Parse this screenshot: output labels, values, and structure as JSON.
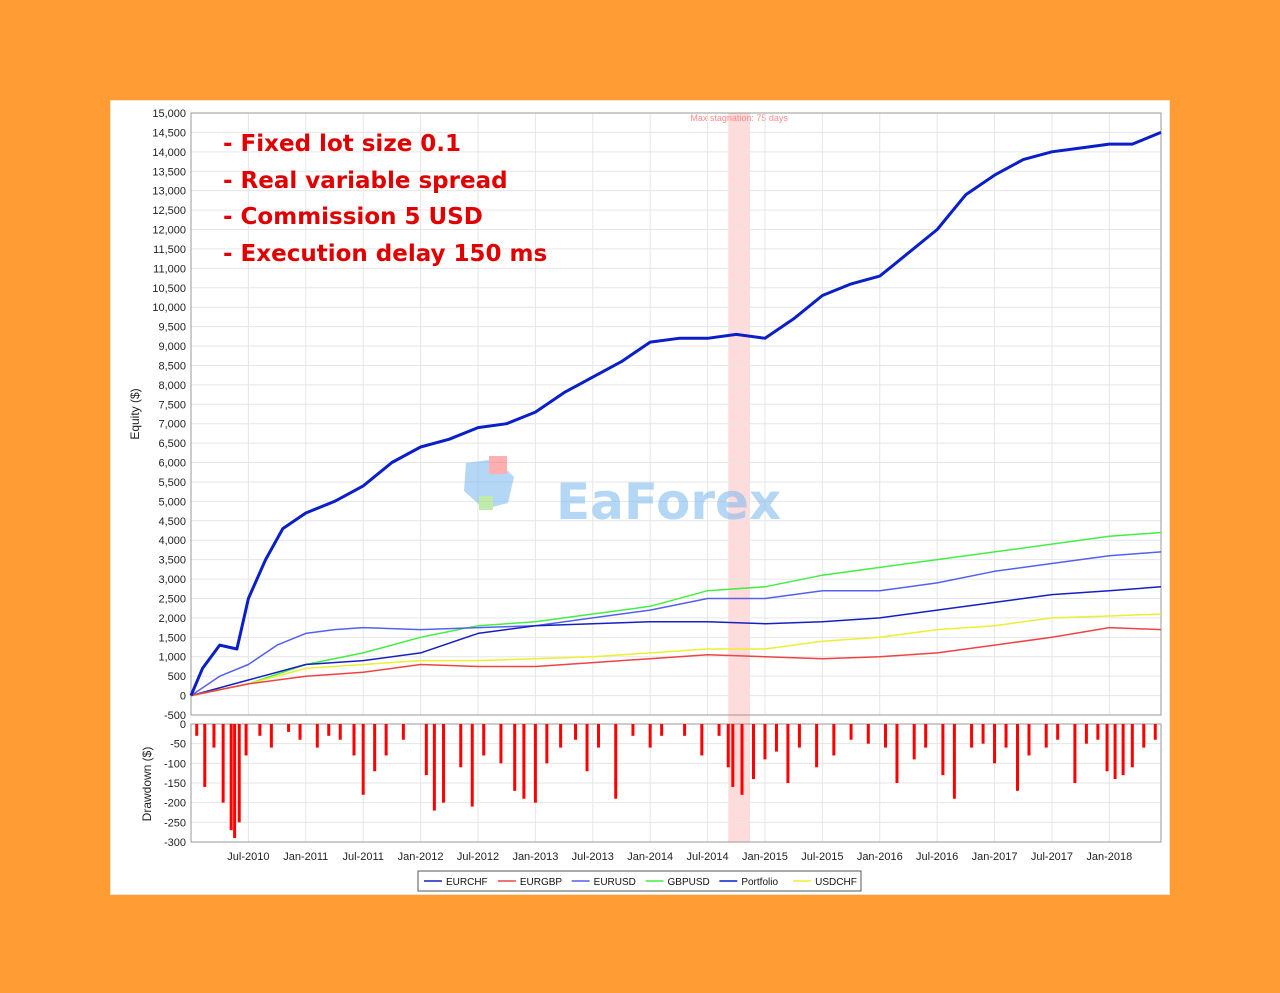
{
  "annotations": [
    "- Fixed lot size 0.1",
    "- Real variable spread",
    "- Commission 5 USD",
    "- Execution delay 150 ms"
  ],
  "watermark": "EaForex",
  "stagnation_label": "Max stagnation: 75 days",
  "chart_data": [
    {
      "type": "line",
      "ylabel": "Equity ($)",
      "ylim": [
        -500,
        15000
      ],
      "yticks": [
        15000,
        14500,
        14000,
        13500,
        13000,
        12500,
        12000,
        11500,
        11000,
        10500,
        10000,
        9500,
        9000,
        8500,
        8000,
        7500,
        7000,
        6500,
        6000,
        5500,
        5000,
        4500,
        4000,
        3500,
        3000,
        2500,
        2000,
        1500,
        1000,
        500,
        0,
        -500
      ],
      "ytick_labels": [
        "15,000",
        "14,500",
        "14,000",
        "13,500",
        "13,000",
        "12,500",
        "12,000",
        "11,500",
        "11,000",
        "10,500",
        "10,000",
        "9,500",
        "9,000",
        "8,500",
        "8,000",
        "7,500",
        "7,000",
        "6,500",
        "6,000",
        "5,500",
        "5,000",
        "4,500",
        "4,000",
        "3,500",
        "3,000",
        "2,500",
        "2,000",
        "1,500",
        "1,000",
        "500",
        "0",
        "-500"
      ],
      "xlim": [
        2010.0,
        2018.45
      ],
      "grid": true,
      "legend_position": "bottom",
      "highlight_x": [
        2014.68,
        2014.87
      ],
      "series": [
        {
          "name": "Portfolio",
          "color": "#0a1fc8",
          "width": 3,
          "x": [
            2010.0,
            2010.1,
            2010.25,
            2010.4,
            2010.5,
            2010.65,
            2010.8,
            2011.0,
            2011.25,
            2011.5,
            2011.75,
            2012.0,
            2012.25,
            2012.5,
            2012.75,
            2013.0,
            2013.25,
            2013.5,
            2013.75,
            2014.0,
            2014.25,
            2014.5,
            2014.75,
            2015.0,
            2015.25,
            2015.5,
            2015.75,
            2016.0,
            2016.25,
            2016.5,
            2016.75,
            2017.0,
            2017.25,
            2017.5,
            2017.75,
            2018.0,
            2018.2,
            2018.45
          ],
          "values": [
            0,
            700,
            1300,
            1200,
            2500,
            3500,
            4300,
            4700,
            5000,
            5400,
            6000,
            6400,
            6600,
            6900,
            7000,
            7300,
            7800,
            8200,
            8600,
            9100,
            9200,
            9200,
            9300,
            9200,
            9700,
            10300,
            10600,
            10800,
            11400,
            12000,
            12900,
            13400,
            13800,
            14000,
            14100,
            14200,
            14200,
            14500
          ]
        },
        {
          "name": "GBPUSD",
          "color": "#44ee44",
          "width": 1.5,
          "x": [
            2010.0,
            2010.5,
            2011.0,
            2011.5,
            2012.0,
            2012.5,
            2013.0,
            2013.5,
            2014.0,
            2014.5,
            2015.0,
            2015.5,
            2016.0,
            2016.5,
            2017.0,
            2017.5,
            2018.0,
            2018.45
          ],
          "values": [
            0,
            300,
            800,
            1100,
            1500,
            1800,
            1900,
            2100,
            2300,
            2700,
            2800,
            3100,
            3300,
            3500,
            3700,
            3900,
            4100,
            4200
          ]
        },
        {
          "name": "EURUSD",
          "color": "#5560ee",
          "width": 1.5,
          "x": [
            2010.0,
            2010.25,
            2010.5,
            2010.75,
            2011.0,
            2011.25,
            2011.5,
            2012.0,
            2012.5,
            2013.0,
            2013.5,
            2014.0,
            2014.5,
            2015.0,
            2015.5,
            2016.0,
            2016.5,
            2017.0,
            2017.5,
            2018.0,
            2018.45
          ],
          "values": [
            0,
            500,
            800,
            1300,
            1600,
            1700,
            1750,
            1700,
            1750,
            1800,
            2000,
            2200,
            2500,
            2500,
            2700,
            2700,
            2900,
            3200,
            3400,
            3600,
            3700
          ]
        },
        {
          "name": "EURCHF",
          "color": "#1620c0",
          "width": 1.5,
          "x": [
            2010.0,
            2010.5,
            2011.0,
            2011.5,
            2012.0,
            2012.5,
            2013.0,
            2013.5,
            2014.0,
            2014.5,
            2015.0,
            2015.5,
            2016.0,
            2016.5,
            2017.0,
            2017.5,
            2018.0,
            2018.45
          ],
          "values": [
            0,
            400,
            800,
            900,
            1100,
            1600,
            1800,
            1850,
            1900,
            1900,
            1850,
            1900,
            2000,
            2200,
            2400,
            2600,
            2700,
            2800
          ]
        },
        {
          "name": "USDCHF",
          "color": "#eeee33",
          "width": 1.5,
          "x": [
            2010.0,
            2010.5,
            2011.0,
            2011.5,
            2012.0,
            2012.5,
            2013.0,
            2013.5,
            2014.0,
            2014.5,
            2015.0,
            2015.5,
            2016.0,
            2016.5,
            2017.0,
            2017.5,
            2018.0,
            2018.45
          ],
          "values": [
            0,
            300,
            700,
            800,
            900,
            900,
            950,
            1000,
            1100,
            1200,
            1200,
            1400,
            1500,
            1700,
            1800,
            2000,
            2050,
            2100
          ]
        },
        {
          "name": "EURGBP",
          "color": "#ee4444",
          "width": 1.5,
          "x": [
            2010.0,
            2010.5,
            2011.0,
            2011.5,
            2012.0,
            2012.5,
            2013.0,
            2013.5,
            2014.0,
            2014.5,
            2015.0,
            2015.5,
            2016.0,
            2016.5,
            2017.0,
            2017.5,
            2018.0,
            2018.45
          ],
          "values": [
            0,
            300,
            500,
            600,
            800,
            750,
            750,
            850,
            950,
            1050,
            1000,
            950,
            1000,
            1100,
            1300,
            1500,
            1750,
            1700
          ]
        }
      ]
    },
    {
      "type": "bar",
      "ylabel": "Drawdown ($)",
      "ylim": [
        -300,
        0
      ],
      "yticks": [
        0,
        -50,
        -100,
        -150,
        -200,
        -250,
        -300
      ],
      "ytick_labels": [
        "0",
        "-50",
        "-100",
        "-150",
        "-200",
        "-250",
        "-300"
      ],
      "xlim": [
        2010.0,
        2018.45
      ],
      "x_tick_positions": [
        2010.5,
        2011.0,
        2011.5,
        2012.0,
        2012.5,
        2013.0,
        2013.5,
        2014.0,
        2014.5,
        2015.0,
        2015.5,
        2016.0,
        2016.5,
        2017.0,
        2017.5,
        2018.0
      ],
      "x_tick_labels": [
        "Jul-2010",
        "Jan-2011",
        "Jul-2011",
        "Jan-2012",
        "Jul-2012",
        "Jan-2013",
        "Jul-2013",
        "Jan-2014",
        "Jul-2014",
        "Jan-2015",
        "Jul-2015",
        "Jan-2016",
        "Jul-2016",
        "Jan-2017",
        "Jul-2017",
        "Jan-2018"
      ],
      "color": "#ff0000",
      "x": [
        2010.05,
        2010.12,
        2010.2,
        2010.28,
        2010.35,
        2010.38,
        2010.42,
        2010.48,
        2010.6,
        2010.7,
        2010.85,
        2010.95,
        2011.1,
        2011.2,
        2011.3,
        2011.42,
        2011.5,
        2011.6,
        2011.7,
        2011.85,
        2012.05,
        2012.12,
        2012.2,
        2012.35,
        2012.45,
        2012.55,
        2012.7,
        2012.82,
        2012.9,
        2013.0,
        2013.1,
        2013.22,
        2013.35,
        2013.45,
        2013.55,
        2013.7,
        2013.85,
        2014.0,
        2014.1,
        2014.3,
        2014.45,
        2014.6,
        2014.68,
        2014.72,
        2014.8,
        2014.9,
        2015.0,
        2015.1,
        2015.2,
        2015.3,
        2015.45,
        2015.6,
        2015.75,
        2015.9,
        2016.05,
        2016.15,
        2016.3,
        2016.4,
        2016.55,
        2016.65,
        2016.8,
        2016.9,
        2017.0,
        2017.1,
        2017.2,
        2017.3,
        2017.45,
        2017.55,
        2017.7,
        2017.8,
        2017.9,
        2017.98,
        2018.05,
        2018.12,
        2018.2,
        2018.3,
        2018.4
      ],
      "values": [
        -30,
        -160,
        -60,
        -200,
        -270,
        -290,
        -250,
        -80,
        -30,
        -60,
        -20,
        -40,
        -60,
        -30,
        -40,
        -80,
        -180,
        -120,
        -80,
        -40,
        -130,
        -220,
        -200,
        -110,
        -210,
        -80,
        -100,
        -170,
        -190,
        -200,
        -100,
        -60,
        -40,
        -120,
        -60,
        -190,
        -30,
        -60,
        -30,
        -30,
        -80,
        -30,
        -110,
        -160,
        -180,
        -140,
        -90,
        -70,
        -150,
        -60,
        -110,
        -80,
        -40,
        -50,
        -60,
        -150,
        -90,
        -60,
        -130,
        -190,
        -60,
        -50,
        -100,
        -60,
        -170,
        -80,
        -60,
        -40,
        -150,
        -50,
        -40,
        -120,
        -140,
        -130,
        -110,
        -60,
        -40
      ]
    }
  ]
}
